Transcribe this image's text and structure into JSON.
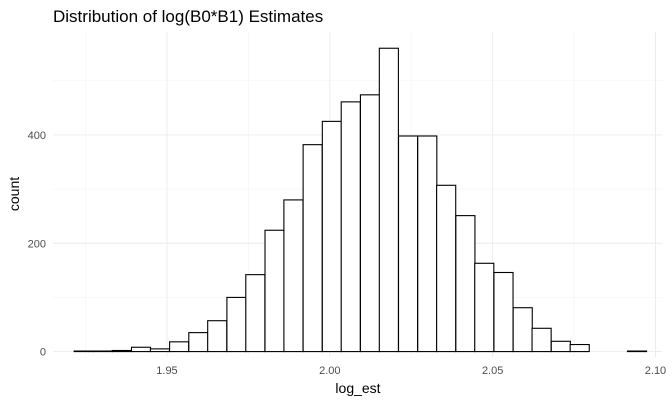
{
  "chart_data": {
    "type": "histogram",
    "title": "Distribution of log(B0*B1) Estimates",
    "xlabel": "log_est",
    "ylabel": "count",
    "xlim": [
      1.915,
      2.102
    ],
    "ylim": [
      -10,
      590
    ],
    "x_ticks": [
      1.95,
      2.0,
      2.05,
      2.1
    ],
    "x_tick_labels": [
      "1.95",
      "2.00",
      "2.05",
      "2.10"
    ],
    "y_ticks": [
      0,
      200,
      400
    ],
    "y_tick_labels": [
      "0",
      "200",
      "400"
    ],
    "grid": true,
    "legend": "none",
    "bin_width": 0.00586,
    "bins": [
      {
        "x_start": 1.9215,
        "count": 1
      },
      {
        "x_start": 1.9274,
        "count": 1
      },
      {
        "x_start": 1.9332,
        "count": 2
      },
      {
        "x_start": 1.9391,
        "count": 8
      },
      {
        "x_start": 1.9449,
        "count": 5
      },
      {
        "x_start": 1.9508,
        "count": 18
      },
      {
        "x_start": 1.9567,
        "count": 35
      },
      {
        "x_start": 1.9625,
        "count": 57
      },
      {
        "x_start": 1.9684,
        "count": 100
      },
      {
        "x_start": 1.9742,
        "count": 142
      },
      {
        "x_start": 1.9801,
        "count": 224
      },
      {
        "x_start": 1.9859,
        "count": 280
      },
      {
        "x_start": 1.9918,
        "count": 382
      },
      {
        "x_start": 1.9977,
        "count": 425
      },
      {
        "x_start": 2.0035,
        "count": 461
      },
      {
        "x_start": 2.0094,
        "count": 474
      },
      {
        "x_start": 2.0152,
        "count": 560
      },
      {
        "x_start": 2.0211,
        "count": 398
      },
      {
        "x_start": 2.027,
        "count": 398
      },
      {
        "x_start": 2.0328,
        "count": 307
      },
      {
        "x_start": 2.0387,
        "count": 251
      },
      {
        "x_start": 2.0445,
        "count": 163
      },
      {
        "x_start": 2.0504,
        "count": 146
      },
      {
        "x_start": 2.0563,
        "count": 81
      },
      {
        "x_start": 2.0621,
        "count": 43
      },
      {
        "x_start": 2.068,
        "count": 19
      },
      {
        "x_start": 2.0738,
        "count": 13
      },
      {
        "x_start": 2.0797,
        "count": 0
      },
      {
        "x_start": 2.0855,
        "count": 0
      },
      {
        "x_start": 2.0914,
        "count": 1
      }
    ]
  }
}
